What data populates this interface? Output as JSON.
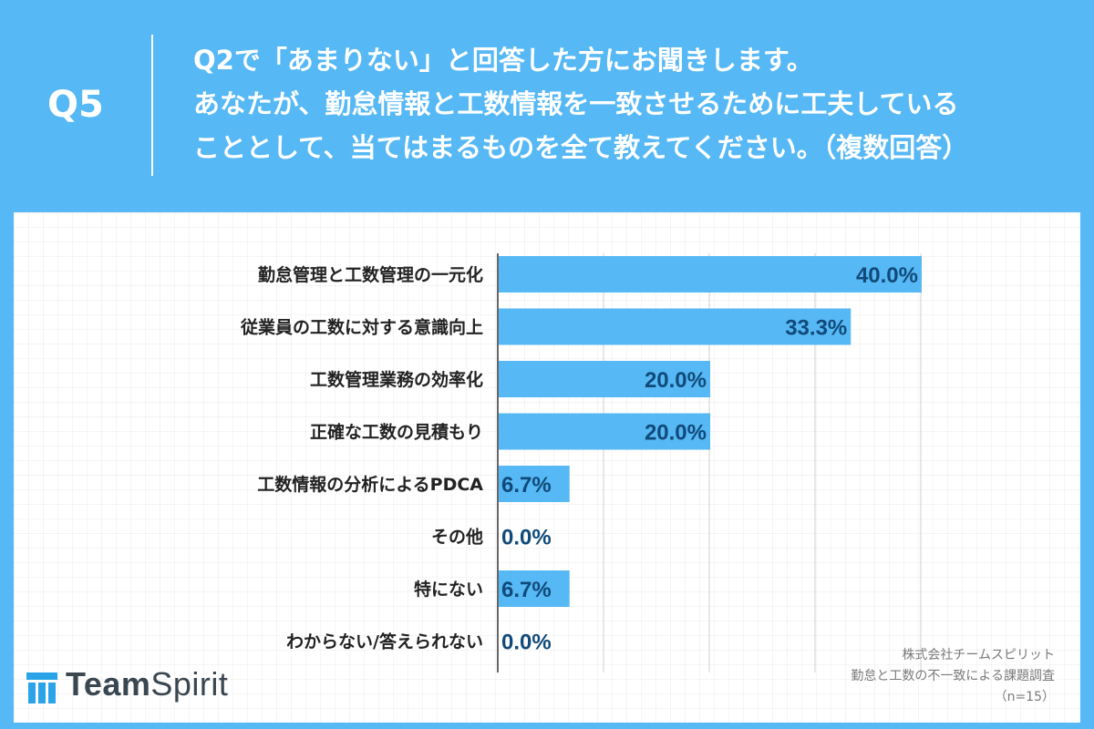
{
  "header": {
    "question_number": "Q5",
    "question_lines": [
      "Q2で「あまりない」と回答した方にお聞きします。",
      "あなたが、勤怠情報と工数情報を一致させるために工夫している",
      "こととして、当てはまるものを全て教えてください。（複数回答）"
    ]
  },
  "colors": {
    "bar": "#56b8f4",
    "background": "#56b8f4",
    "value_text": "#114a7a"
  },
  "chart_data": {
    "type": "bar",
    "orientation": "horizontal",
    "categories": [
      "勤怠管理と工数管理の一元化",
      "従業員の工数に対する意識向上",
      "工数管理業務の効率化",
      "正確な工数の見積もり",
      "工数情報の分析によるPDCA",
      "その他",
      "特にない",
      "わからない/答えられない"
    ],
    "values": [
      40.0,
      33.3,
      20.0,
      20.0,
      6.7,
      0.0,
      6.7,
      0.0
    ],
    "value_labels": [
      "40.0%",
      "33.3%",
      "20.0%",
      "20.0%",
      "6.7%",
      "0.0%",
      "6.7%",
      "0.0%"
    ],
    "xlim": [
      0,
      40
    ],
    "grid": true
  },
  "logo": {
    "part1": "Team",
    "part2": "Spirit"
  },
  "source": {
    "lines": [
      "株式会社チームスピリット",
      "勤怠と工数の不一致による課題調査",
      "（n=15）"
    ]
  }
}
